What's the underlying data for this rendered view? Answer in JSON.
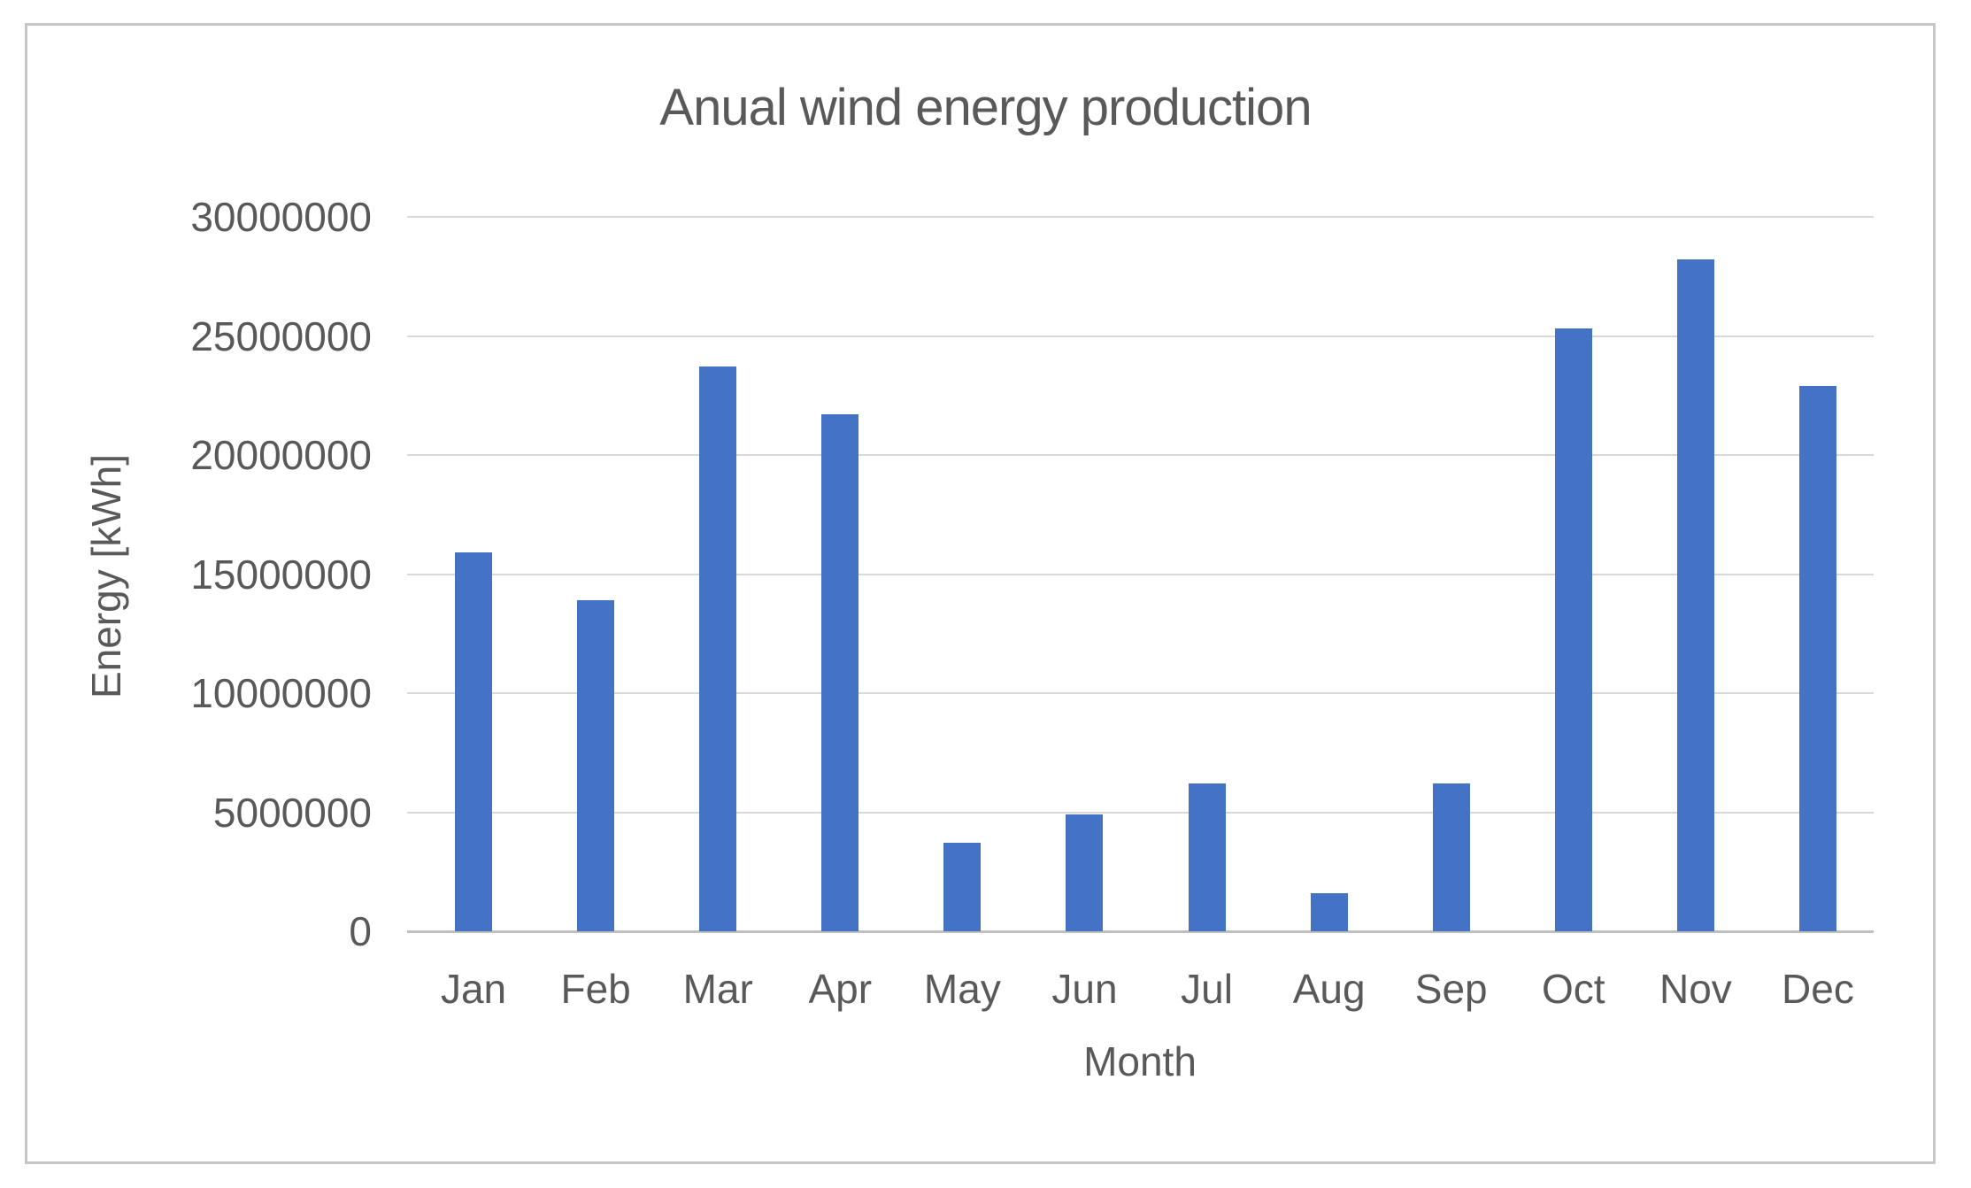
{
  "chart_data": {
    "type": "bar",
    "title": "Anual wind energy production",
    "xlabel": "Month",
    "ylabel": "Energy [kWh]",
    "categories": [
      "Jan",
      "Feb",
      "Mar",
      "Apr",
      "May",
      "Jun",
      "Jul",
      "Aug",
      "Sep",
      "Oct",
      "Nov",
      "Dec"
    ],
    "values": [
      15900000,
      13900000,
      23700000,
      21700000,
      3700000,
      4900000,
      6200000,
      1600000,
      6200000,
      25300000,
      28200000,
      22900000
    ],
    "ylim": [
      0,
      30000000
    ],
    "yticks": [
      0,
      5000000,
      10000000,
      15000000,
      20000000,
      25000000,
      30000000
    ],
    "ytick_labels": [
      "0",
      "5000000",
      "10000000",
      "15000000",
      "20000000",
      "25000000",
      "30000000"
    ],
    "grid": "horizontal",
    "legend": "none",
    "bar_color": "#4472c4",
    "text_color": "#595959",
    "gridline_color": "#d9d9d9",
    "axis_line_color": "#bfbfbf",
    "frame_border_color": "#c6c6c6"
  }
}
